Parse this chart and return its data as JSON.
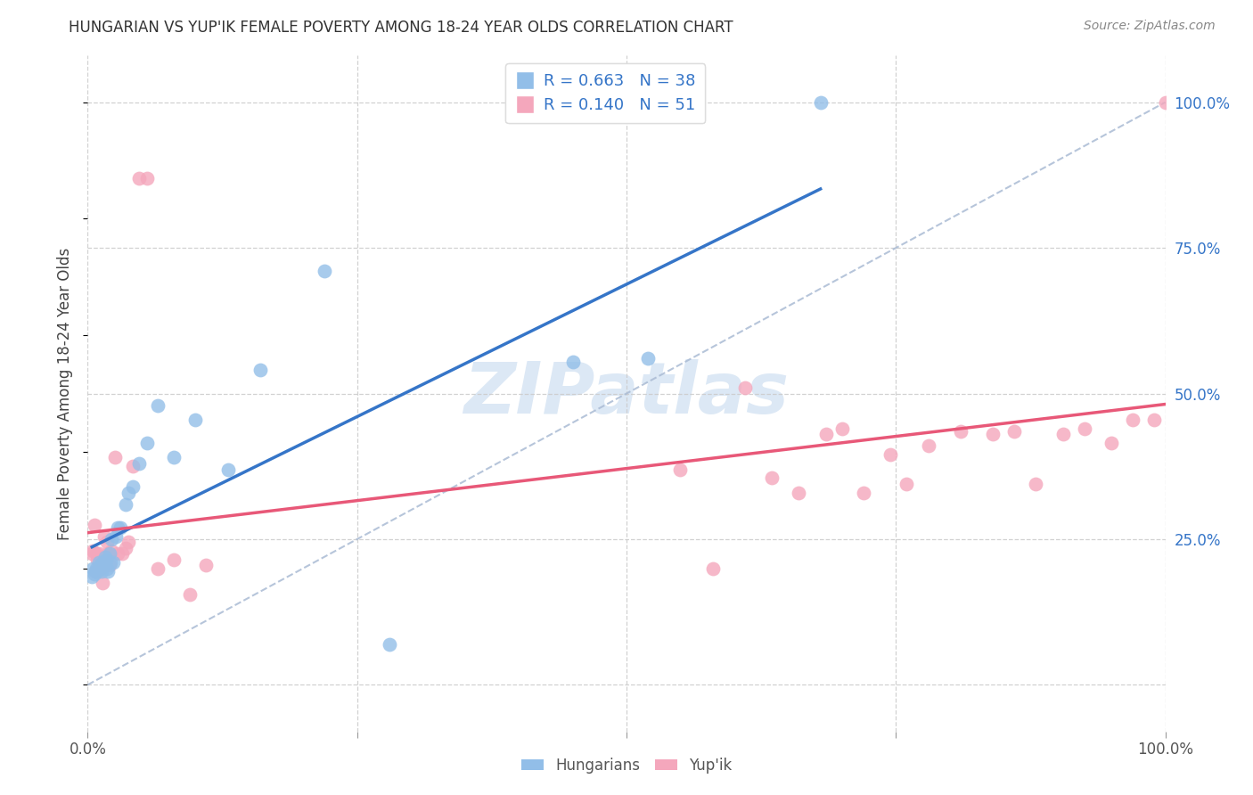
{
  "title": "HUNGARIAN VS YUP'IK FEMALE POVERTY AMONG 18-24 YEAR OLDS CORRELATION CHART",
  "source": "Source: ZipAtlas.com",
  "ylabel": "Female Poverty Among 18-24 Year Olds",
  "xlim": [
    0.0,
    1.0
  ],
  "ylim": [
    -0.08,
    1.08
  ],
  "hungarian_color": "#92BEE8",
  "yupik_color": "#F4A7BC",
  "hungarian_line_color": "#3575C8",
  "yupik_line_color": "#E85878",
  "diagonal_color": "#AABBD4",
  "grid_color": "#CCCCCC",
  "background_color": "#FFFFFF",
  "legend_text_color": "#3575C8",
  "right_axis_color": "#3575C8",
  "hungarian_x": [
    0.004,
    0.005,
    0.006,
    0.007,
    0.008,
    0.009,
    0.01,
    0.011,
    0.012,
    0.013,
    0.014,
    0.015,
    0.016,
    0.017,
    0.018,
    0.019,
    0.02,
    0.021,
    0.022,
    0.024,
    0.026,
    0.028,
    0.03,
    0.035,
    0.038,
    0.042,
    0.048,
    0.055,
    0.065,
    0.08,
    0.1,
    0.13,
    0.16,
    0.22,
    0.28,
    0.45,
    0.52,
    0.68
  ],
  "hungarian_y": [
    0.185,
    0.2,
    0.19,
    0.195,
    0.2,
    0.195,
    0.21,
    0.205,
    0.2,
    0.195,
    0.21,
    0.205,
    0.22,
    0.215,
    0.2,
    0.195,
    0.225,
    0.21,
    0.25,
    0.21,
    0.255,
    0.27,
    0.27,
    0.31,
    0.33,
    0.34,
    0.38,
    0.415,
    0.48,
    0.39,
    0.455,
    0.37,
    0.54,
    0.71,
    0.07,
    0.555,
    0.56,
    1.0
  ],
  "yupik_x": [
    0.004,
    0.005,
    0.006,
    0.007,
    0.008,
    0.009,
    0.01,
    0.011,
    0.012,
    0.013,
    0.014,
    0.015,
    0.016,
    0.017,
    0.018,
    0.019,
    0.02,
    0.022,
    0.025,
    0.028,
    0.032,
    0.035,
    0.038,
    0.042,
    0.048,
    0.055,
    0.065,
    0.08,
    0.095,
    0.11,
    0.55,
    0.58,
    0.61,
    0.635,
    0.66,
    0.685,
    0.7,
    0.72,
    0.745,
    0.76,
    0.78,
    0.81,
    0.84,
    0.86,
    0.88,
    0.905,
    0.925,
    0.95,
    0.97,
    0.99,
    1.0
  ],
  "yupik_y": [
    0.225,
    0.23,
    0.275,
    0.195,
    0.225,
    0.215,
    0.225,
    0.22,
    0.2,
    0.215,
    0.175,
    0.255,
    0.22,
    0.215,
    0.245,
    0.225,
    0.205,
    0.23,
    0.39,
    0.225,
    0.225,
    0.235,
    0.245,
    0.375,
    0.87,
    0.87,
    0.2,
    0.215,
    0.155,
    0.205,
    0.37,
    0.2,
    0.51,
    0.355,
    0.33,
    0.43,
    0.44,
    0.33,
    0.395,
    0.345,
    0.41,
    0.435,
    0.43,
    0.435,
    0.345,
    0.43,
    0.44,
    0.415,
    0.455,
    0.455,
    1.0
  ]
}
